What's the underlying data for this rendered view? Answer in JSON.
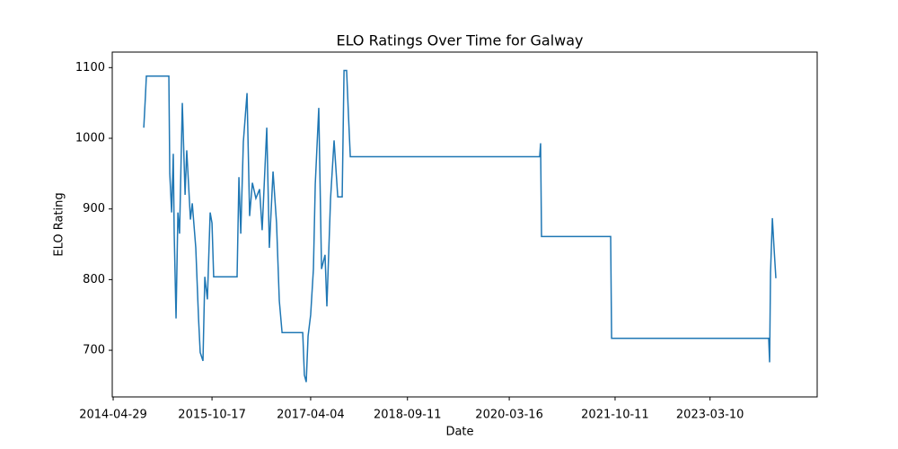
{
  "chart_data": {
    "type": "line",
    "title": "ELO Ratings Over Time for Galway",
    "x_label": "Date",
    "y_label": "ELO Rating",
    "x": [
      "2014-10-12",
      "2014-10-21",
      "2014-10-26",
      "2015-02-25",
      "2015-03-02",
      "2015-03-12",
      "2015-03-21",
      "2015-03-26",
      "2015-04-05",
      "2015-04-15",
      "2015-04-24",
      "2015-05-09",
      "2015-05-24",
      "2015-06-02",
      "2015-06-22",
      "2015-07-02",
      "2015-07-21",
      "2015-08-05",
      "2015-08-14",
      "2015-08-29",
      "2015-09-08",
      "2015-09-22",
      "2015-10-07",
      "2015-10-17",
      "2015-10-26",
      "2016-03-01",
      "2016-03-11",
      "2016-03-21",
      "2016-04-04",
      "2016-04-24",
      "2016-05-08",
      "2016-05-23",
      "2016-06-11",
      "2016-07-01",
      "2016-07-15",
      "2016-08-09",
      "2016-08-23",
      "2016-09-12",
      "2016-10-01",
      "2016-10-16",
      "2016-10-31",
      "2017-02-20",
      "2017-03-01",
      "2017-03-11",
      "2017-03-21",
      "2017-04-04",
      "2017-04-19",
      "2017-04-29",
      "2017-05-18",
      "2017-06-02",
      "2017-06-21",
      "2017-07-01",
      "2017-07-21",
      "2017-08-09",
      "2017-08-29",
      "2017-09-22",
      "2017-10-02",
      "2017-10-16",
      "2017-10-26",
      "2017-11-05",
      "2020-08-28",
      "2020-09-02",
      "2020-09-07",
      "2021-09-17",
      "2021-09-22",
      "2024-01-22",
      "2024-01-27",
      "2024-02-01",
      "2024-02-11",
      "2024-02-20",
      "2024-03-01"
    ],
    "series": [
      {
        "name": "Galway",
        "color": "#1f77b4",
        "values": [
          1015,
          1060,
          1088,
          1088,
          950,
          895,
          978,
          865,
          745,
          895,
          865,
          1050,
          920,
          983,
          885,
          908,
          845,
          745,
          697,
          685,
          804,
          772,
          895,
          880,
          804,
          804,
          945,
          865,
          995,
          1064,
          890,
          937,
          915,
          928,
          870,
          1015,
          845,
          953,
          880,
          770,
          725,
          725,
          665,
          655,
          720,
          750,
          815,
          935,
          1043,
          815,
          835,
          762,
          915,
          997,
          917,
          917,
          1096,
          1096,
          1033,
          974,
          974,
          993,
          861,
          861,
          717,
          717,
          683,
          810,
          887,
          845,
          802
        ]
      }
    ],
    "xlim": [
      "2014-04-24",
      "2024-10-11"
    ],
    "xticks": [
      "2014-04-29",
      "2015-10-17",
      "2017-04-04",
      "2018-09-11",
      "2020-03-16",
      "2021-10-11",
      "2023-03-10"
    ],
    "ylim": [
      634,
      1122
    ],
    "yticks": [
      700,
      800,
      900,
      1000,
      1100
    ],
    "grid": false
  }
}
